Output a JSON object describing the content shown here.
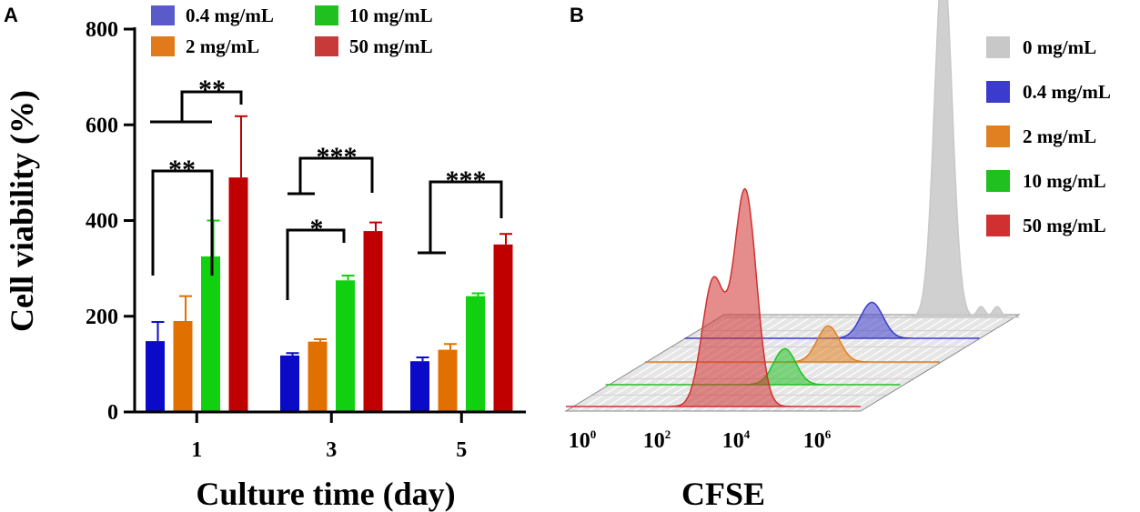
{
  "panels": {
    "a": {
      "letter": "A",
      "chart_data": {
        "type": "bar",
        "title": "",
        "xlabel": "Culture time (day)",
        "ylabel": "Cell viability (%)",
        "ylim": [
          0,
          800
        ],
        "yticks": [
          "0",
          "200",
          "400",
          "600",
          "800"
        ],
        "categories": [
          "1",
          "3",
          "5"
        ],
        "series": [
          {
            "name": "0.4 mg/mL",
            "color": "#0a0ac8",
            "legend_color": "#5a5ac8",
            "values": [
              148,
              118,
              106
            ],
            "errors": [
              40,
              5,
              8
            ]
          },
          {
            "name": "2 mg/mL",
            "color": "#e07000",
            "legend_color": "#e07a1a",
            "values": [
              190,
              147,
              130
            ],
            "errors": [
              52,
              5,
              12
            ]
          },
          {
            "name": "10 mg/mL",
            "color": "#10d010",
            "legend_color": "#20c020",
            "values": [
              325,
              275,
              242
            ],
            "errors": [
              75,
              10,
              6
            ]
          },
          {
            "name": "50 mg/mL",
            "color": "#c00000",
            "legend_color": "#c83a3a",
            "values": [
              490,
              378,
              350
            ],
            "errors": [
              128,
              18,
              22
            ]
          }
        ],
        "significance": [
          {
            "label": "**",
            "category": "1"
          },
          {
            "label": "**",
            "category": "1"
          },
          {
            "label": "***",
            "category": "3"
          },
          {
            "label": "*",
            "category": "3"
          },
          {
            "label": "***",
            "category": "5"
          }
        ]
      }
    },
    "b": {
      "letter": "B",
      "chart_data": {
        "type": "area",
        "title": "",
        "xlabel": "CFSE",
        "x_ticks": [
          {
            "base": "10",
            "exp": "0"
          },
          {
            "base": "10",
            "exp": "2"
          },
          {
            "base": "10",
            "exp": "4"
          },
          {
            "base": "10",
            "exp": "6"
          }
        ],
        "series": [
          {
            "name": "0 mg/mL",
            "color": "#c8c8c8",
            "peaks_log10": [
              4.9
            ],
            "relative_heights": [
              1.0
            ]
          },
          {
            "name": "0.4 mg/mL",
            "color": "#3c3ccc",
            "peaks_log10": [
              4.1
            ],
            "relative_heights": [
              0.1
            ]
          },
          {
            "name": "2 mg/mL",
            "color": "#e08020",
            "peaks_log10": [
              4.0
            ],
            "relative_heights": [
              0.1
            ]
          },
          {
            "name": "10 mg/mL",
            "color": "#20c020",
            "peaks_log10": [
              3.9
            ],
            "relative_heights": [
              0.1
            ]
          },
          {
            "name": "50 mg/mL",
            "color": "#d03030",
            "peaks_log10": [
              3.1,
              3.9
            ],
            "relative_heights": [
              0.35,
              0.6
            ]
          }
        ]
      }
    }
  }
}
